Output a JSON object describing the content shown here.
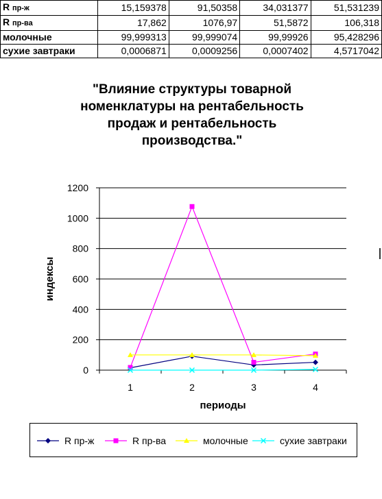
{
  "table": {
    "rows": [
      {
        "label": "R",
        "label_sub": "пр-ж",
        "values": [
          "15,159378",
          "91,50358",
          "34,031377",
          "51,531239"
        ]
      },
      {
        "label": "R",
        "label_sub": "пр-ва",
        "values": [
          "17,862",
          "1076,97",
          "51,5872",
          "106,318"
        ]
      },
      {
        "label": "молочные",
        "label_sub": "",
        "values": [
          "99,999313",
          "99,999074",
          "99,99926",
          "95,428296"
        ]
      },
      {
        "label": "сухие завтраки",
        "label_sub": "",
        "values": [
          "0,0006871",
          "0,0009256",
          "0,0007402",
          "4,5717042"
        ]
      }
    ]
  },
  "chart_data": {
    "type": "line",
    "title": "\"Влияние структуры товарной номенклатуры на рентабельность продаж и рентабельность производства.\"",
    "title_lines": [
      "\"Влияние структуры товарной",
      "номенклатуры на рентабельность",
      "продаж и рентабельность",
      "производства.\""
    ],
    "xlabel": "периоды",
    "ylabel": "индексы",
    "categories": [
      "1",
      "2",
      "3",
      "4"
    ],
    "ylim": [
      0,
      1200
    ],
    "yticks": [
      0,
      200,
      400,
      600,
      800,
      1000,
      1200
    ],
    "grid": "horizontal",
    "legend_position": "bottom",
    "series": [
      {
        "name": "R пр-ж",
        "values": [
          15.159378,
          91.50358,
          34.031377,
          51.531239
        ],
        "color": "#000080",
        "marker": "diamond"
      },
      {
        "name": "R пр-ва",
        "values": [
          17.862,
          1076.97,
          51.5872,
          106.318
        ],
        "color": "#ff00ff",
        "marker": "square"
      },
      {
        "name": "молочные",
        "values": [
          99.999313,
          99.999074,
          99.99926,
          95.428296
        ],
        "color": "#ffff00",
        "marker": "triangle"
      },
      {
        "name": "сухие завтраки",
        "values": [
          0.0006871,
          0.0009256,
          0.0007402,
          4.5717042
        ],
        "color": "#00ffff",
        "marker": "x"
      }
    ]
  }
}
